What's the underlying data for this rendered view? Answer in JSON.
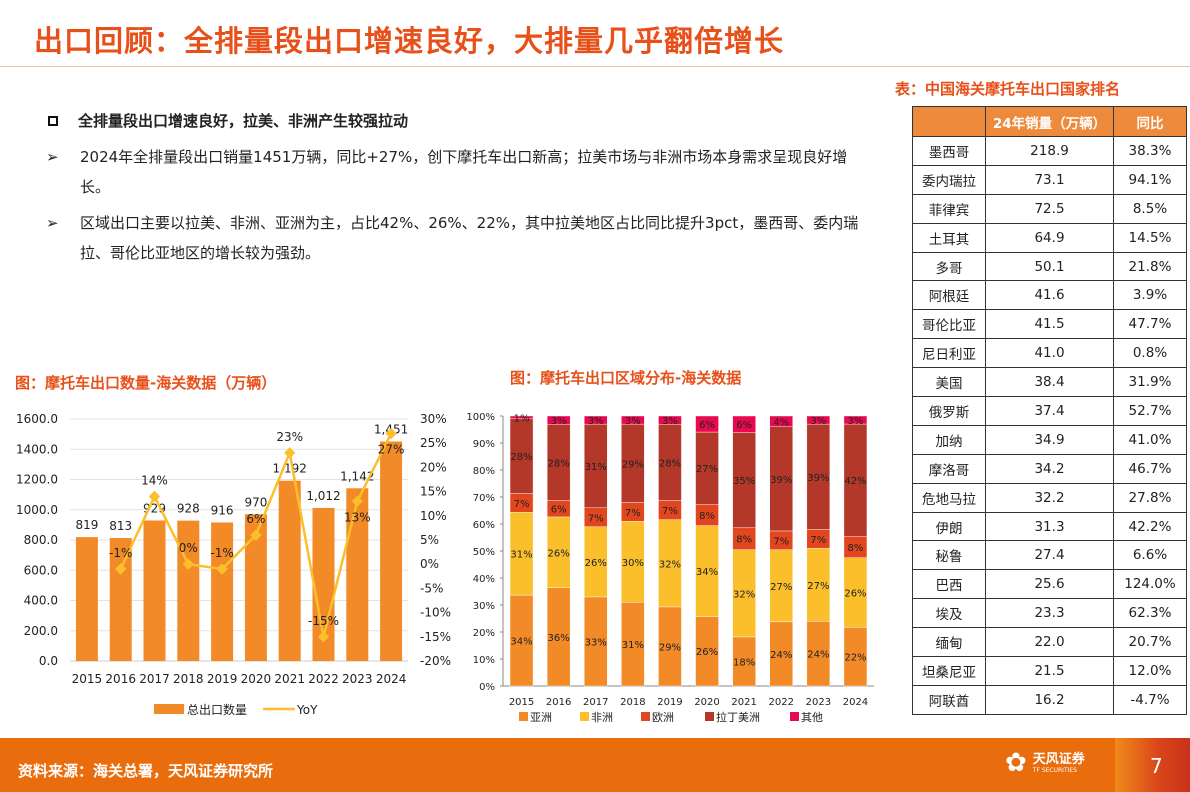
{
  "title": "出口回顾：全排量段出口增速良好，大排量几乎翻倍增长",
  "bullets": {
    "heading": "全排量段出口增速良好，拉美、非洲产生较强拉动",
    "items": [
      "2024年全排量段出口销量1451万辆，同比+27%，创下摩托车出口新高；拉美市场与非洲市场本身需求呈现良好增长。",
      "区域出口主要以拉美、非洲、亚洲为主，占比42%、26%、22%，其中拉美地区占比同比提升3pct，墨西哥、委内瑞拉、哥伦比亚地区的增长较为强劲。"
    ]
  },
  "table": {
    "title": "表：中国海关摩托车出口国家排名",
    "headers": [
      "",
      "24年销量（万辆）",
      "同比"
    ],
    "rows": [
      [
        "墨西哥",
        "218.9",
        "38.3%"
      ],
      [
        "委内瑞拉",
        "73.1",
        "94.1%"
      ],
      [
        "菲律宾",
        "72.5",
        "8.5%"
      ],
      [
        "土耳其",
        "64.9",
        "14.5%"
      ],
      [
        "多哥",
        "50.1",
        "21.8%"
      ],
      [
        "阿根廷",
        "41.6",
        "3.9%"
      ],
      [
        "哥伦比亚",
        "41.5",
        "47.7%"
      ],
      [
        "尼日利亚",
        "41.0",
        "0.8%"
      ],
      [
        "美国",
        "38.4",
        "31.9%"
      ],
      [
        "俄罗斯",
        "37.4",
        "52.7%"
      ],
      [
        "加纳",
        "34.9",
        "41.0%"
      ],
      [
        "摩洛哥",
        "34.2",
        "46.7%"
      ],
      [
        "危地马拉",
        "32.2",
        "27.8%"
      ],
      [
        "伊朗",
        "31.3",
        "42.2%"
      ],
      [
        "秘鲁",
        "27.4",
        "6.6%"
      ],
      [
        "巴西",
        "25.6",
        "124.0%"
      ],
      [
        "埃及",
        "23.3",
        "62.3%"
      ],
      [
        "缅甸",
        "22.0",
        "20.7%"
      ],
      [
        "坦桑尼亚",
        "21.5",
        "12.0%"
      ],
      [
        "阿联酋",
        "16.2",
        "-4.7%"
      ]
    ]
  },
  "chart_data": [
    {
      "type": "bar+line",
      "title": "图：摩托车出口数量-海关数据（万辆）",
      "categories": [
        "2015",
        "2016",
        "2017",
        "2018",
        "2019",
        "2020",
        "2021",
        "2022",
        "2023",
        "2024"
      ],
      "series": [
        {
          "name": "总出口数量",
          "type": "bar",
          "values": [
            819,
            813,
            929,
            928,
            916,
            970,
            1192,
            1012,
            1142,
            1451
          ],
          "labels": [
            "819",
            "813",
            "929",
            "928",
            "916",
            "970",
            "1,192",
            "1,012",
            "1,142",
            "1,451"
          ],
          "color": "#f28a27"
        },
        {
          "name": "YoY",
          "type": "line",
          "axis": "right",
          "values": [
            null,
            -1,
            14,
            0,
            -1,
            6,
            23,
            -15,
            13,
            27
          ],
          "labels": [
            "",
            "-1%",
            "14%",
            "0%",
            "-1%",
            "6%",
            "23%",
            "-15%",
            "13%",
            "27%"
          ],
          "color": "#fbbf2c"
        }
      ],
      "yleft": {
        "range": [
          0,
          1600
        ],
        "ticks": [
          "0.0",
          "200.0",
          "400.0",
          "600.0",
          "800.0",
          "1000.0",
          "1200.0",
          "1400.0",
          "1600.0"
        ]
      },
      "yright": {
        "range": [
          -20,
          30
        ],
        "ticks": [
          "-20%",
          "-15%",
          "-10%",
          "-5%",
          "0%",
          "5%",
          "10%",
          "15%",
          "20%",
          "25%",
          "30%"
        ]
      },
      "grid": true,
      "legend": "bottom"
    },
    {
      "type": "stacked-bar",
      "title": "图：摩托车出口区域分布-海关数据",
      "categories": [
        "2015",
        "2016",
        "2017",
        "2018",
        "2019",
        "2020",
        "2021",
        "2022",
        "2023",
        "2024"
      ],
      "series": [
        {
          "name": "亚洲",
          "color": "#f28a27",
          "values": [
            34,
            36,
            33,
            31,
            29,
            26,
            18,
            24,
            24,
            22
          ]
        },
        {
          "name": "非洲",
          "color": "#fbbf2c",
          "values": [
            31,
            26,
            26,
            30,
            32,
            34,
            32,
            27,
            27,
            26
          ]
        },
        {
          "name": "欧洲",
          "color": "#e1461f",
          "values": [
            7,
            6,
            7,
            7,
            7,
            8,
            8,
            7,
            7,
            8
          ]
        },
        {
          "name": "拉丁美洲",
          "color": "#b3382a",
          "values": [
            28,
            28,
            31,
            29,
            28,
            27,
            35,
            39,
            39,
            42
          ]
        },
        {
          "name": "其他",
          "color": "#e8094f",
          "values": [
            1,
            3,
            3,
            3,
            3,
            6,
            6,
            4,
            3,
            3
          ]
        }
      ],
      "yaxis": {
        "range": [
          0,
          100
        ],
        "ticks": [
          "0%",
          "10%",
          "20%",
          "30%",
          "40%",
          "50%",
          "60%",
          "70%",
          "80%",
          "90%",
          "100%"
        ]
      },
      "legend": "bottom"
    }
  ],
  "footer": {
    "source": "资料来源：海关总署，天风证券研究所",
    "logo_cn": "天风证券",
    "logo_en": "TF SECURITIES",
    "page": "7"
  }
}
